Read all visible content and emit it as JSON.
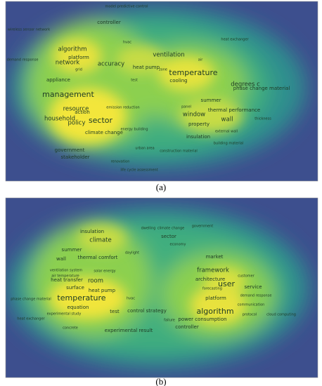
{
  "panels": [
    {
      "label": "(a)",
      "terms": [
        "temperature",
        "management",
        "sector",
        "policy",
        "ventilation",
        "algorithm",
        "network",
        "accuracy",
        "resource",
        "household",
        "window",
        "wall",
        "degrees c",
        "phase change material",
        "thermal performance",
        "summer",
        "insulation",
        "property",
        "climate change",
        "controller",
        "heat pump",
        "platform",
        "appliance",
        "action",
        "government",
        "stakeholder",
        "renovation",
        "urban area",
        "life cycle assessment",
        "cooling",
        "zone",
        "air",
        "panel",
        "hvac",
        "grid",
        "building material",
        "thickness",
        "energy building",
        "emission reduction",
        "test",
        "model predictive control",
        "wireless sensor network",
        "demand response",
        "construction material",
        "external wall",
        "heat exchanger"
      ]
    },
    {
      "label": "(b)",
      "terms": [
        "temperature",
        "algorithm",
        "user",
        "framework",
        "insulation",
        "climate",
        "thermal comfort",
        "room",
        "wall",
        "summer",
        "surface",
        "heat transfer",
        "test",
        "equation",
        "heat pump",
        "service",
        "platform",
        "architecture",
        "power consumption",
        "controller",
        "experimental result",
        "control strategy",
        "sector",
        "market",
        "customer",
        "communication",
        "protocol",
        "cloud computing",
        "demand response",
        "economy",
        "climate change",
        "dwelling",
        "government",
        "ventilation system",
        "air temperature",
        "phase change material",
        "experimental study",
        "solar energy",
        "forecasting",
        "failure",
        "hvac",
        "heat exchanger",
        "concrete",
        "daylight"
      ]
    }
  ]
}
